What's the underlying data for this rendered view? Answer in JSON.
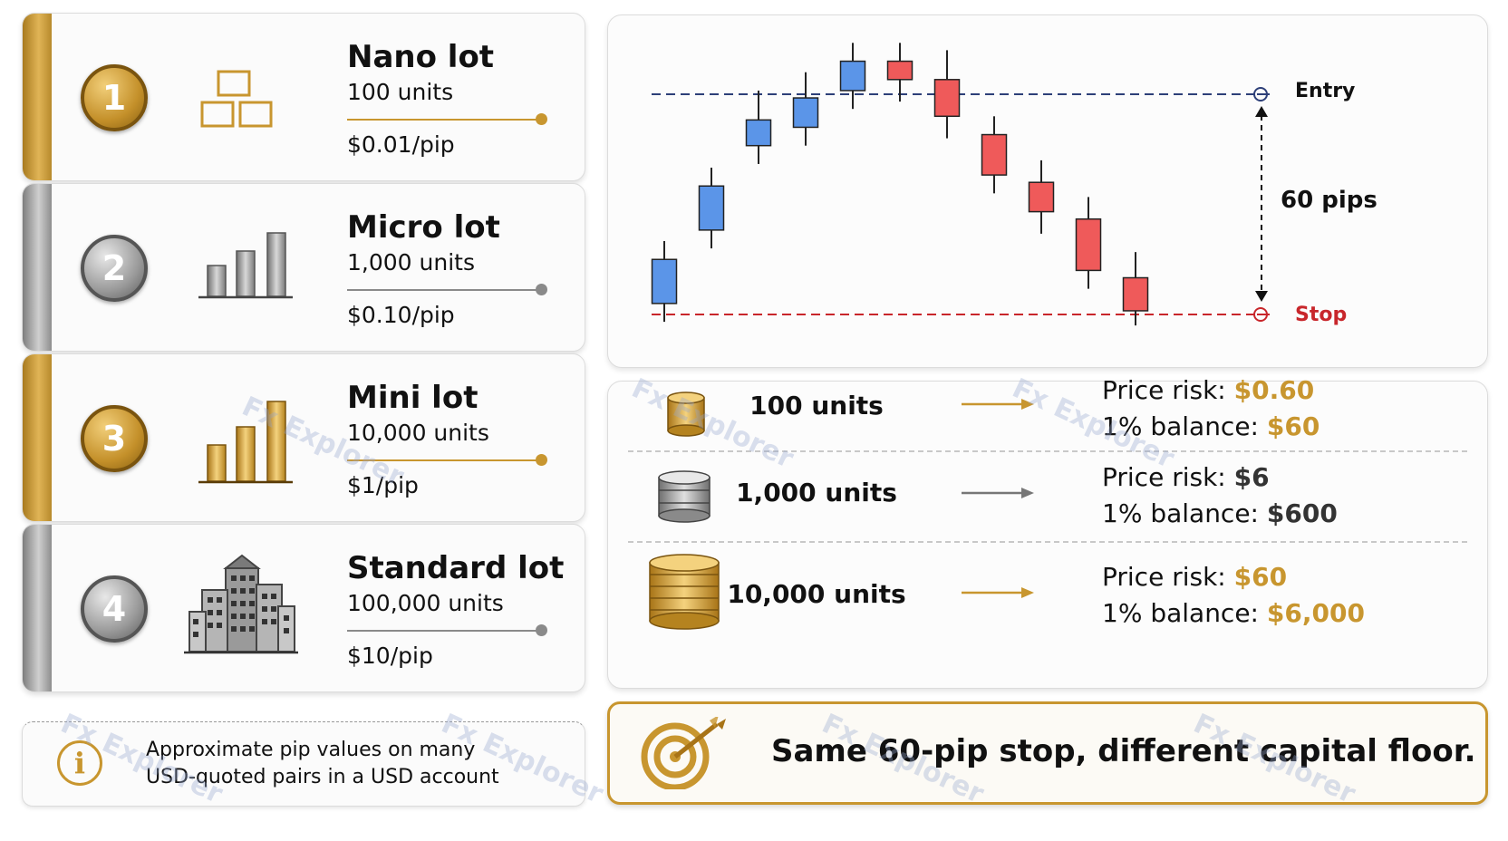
{
  "lot_cards": [
    {
      "number": "1",
      "title": "Nano lot",
      "units": "100 units",
      "pip_value": "$0.01/pip",
      "accent": "gold",
      "icon": "small-boxes-icon"
    },
    {
      "number": "2",
      "title": "Micro lot",
      "units": "1,000 units",
      "pip_value": "$0.10/pip",
      "accent": "silver",
      "icon": "silver-bars-icon"
    },
    {
      "number": "3",
      "title": "Mini lot",
      "units": "10,000 units",
      "pip_value": "$1/pip",
      "accent": "gold",
      "icon": "gold-bars-icon"
    },
    {
      "number": "4",
      "title": "Standard lot",
      "units": "100,000 units",
      "pip_value": "$10/pip",
      "accent": "silver",
      "icon": "office-buildings-icon"
    }
  ],
  "note": {
    "line1": "Approximate pip values on many",
    "line2": "USD-quoted pairs in a USD account",
    "icon": "info-icon"
  },
  "chart_data": {
    "type": "candlestick",
    "entry_label": "Entry",
    "stop_label": "Stop",
    "distance_label": "60 pips",
    "entry_level": 60,
    "stop_level": 0,
    "candles": [
      {
        "open": 3,
        "close": 15,
        "high": 20,
        "low": -2,
        "direction": "up"
      },
      {
        "open": 23,
        "close": 35,
        "high": 40,
        "low": 18,
        "direction": "up"
      },
      {
        "open": 46,
        "close": 53,
        "high": 61,
        "low": 41,
        "direction": "up"
      },
      {
        "open": 51,
        "close": 59,
        "high": 66,
        "low": 46,
        "direction": "up"
      },
      {
        "open": 61,
        "close": 69,
        "high": 74,
        "low": 56,
        "direction": "up"
      },
      {
        "open": 69,
        "close": 64,
        "high": 74,
        "low": 58,
        "direction": "down"
      },
      {
        "open": 64,
        "close": 54,
        "high": 72,
        "low": 48,
        "direction": "down"
      },
      {
        "open": 49,
        "close": 38,
        "high": 54,
        "low": 33,
        "direction": "down"
      },
      {
        "open": 36,
        "close": 28,
        "high": 42,
        "low": 22,
        "direction": "down"
      },
      {
        "open": 26,
        "close": 12,
        "high": 32,
        "low": 7,
        "direction": "down"
      },
      {
        "open": 10,
        "close": 1,
        "high": 17,
        "low": -3,
        "direction": "down"
      }
    ],
    "colors": {
      "up": "#5b95e8",
      "down": "#ef5a5a",
      "entry": "#2d3f78",
      "stop": "#c8262b"
    }
  },
  "risk_rows": [
    {
      "units": "100 units",
      "price_risk_label": "Price risk:",
      "price_risk": "$0.60",
      "balance_label": "1% balance:",
      "balance": "$60",
      "emphasis": "gold",
      "icon": "gold-coin-icon"
    },
    {
      "units": "1,000 units",
      "price_risk_label": "Price risk:",
      "price_risk": "$6",
      "balance_label": "1% balance:",
      "balance": "$600",
      "emphasis": "dark",
      "icon": "silver-coin-stack-icon"
    },
    {
      "units": "10,000 units",
      "price_risk_label": "Price risk:",
      "price_risk": "$60",
      "balance_label": "1% balance:",
      "balance": "$6,000",
      "emphasis": "gold",
      "icon": "gold-coin-stack-icon"
    }
  ],
  "banner": {
    "text": "Same 60-pip stop, different capital floor.",
    "icon": "target-arrow-icon"
  },
  "watermark": "Fx Explorer",
  "colors": {
    "gold": "#c8962f",
    "silver": "#8a8a8a"
  }
}
